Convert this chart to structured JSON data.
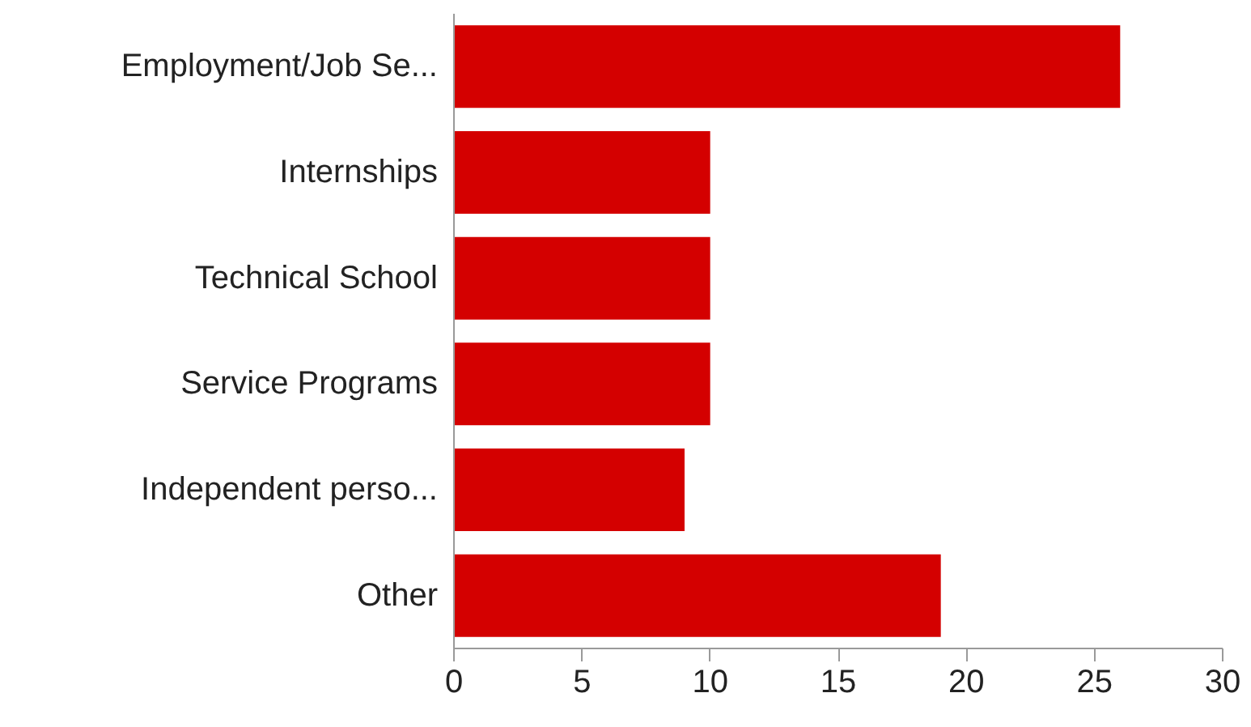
{
  "chart_data": {
    "type": "bar",
    "orientation": "horizontal",
    "categories": [
      "Employment/Job Se...",
      "Internships",
      "Technical School",
      "Service Programs",
      "Independent perso...",
      "Other"
    ],
    "values": [
      26,
      10,
      10,
      10,
      9,
      19
    ],
    "color": "#d40000",
    "xlim": [
      0,
      30
    ],
    "xticks": [
      0,
      5,
      10,
      15,
      20,
      25,
      30
    ],
    "grid": false
  }
}
